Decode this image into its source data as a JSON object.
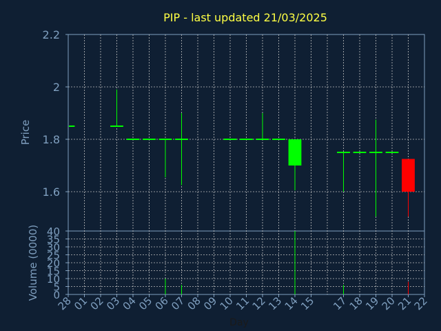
{
  "chart_data": [
    {
      "type": "candlestick",
      "title": "PIP - last updated 21/03/2025",
      "ylabel": "Price",
      "ylim": [
        1.45,
        2.2
      ],
      "yticks": [
        "1.6",
        "1.8",
        "2",
        "2.2"
      ],
      "grid": true,
      "up_color": "#00ff00",
      "down_color": "#ff0000",
      "flat_color": "#00ff00",
      "candles": [
        {
          "day": "28",
          "open": 1.85,
          "high": 1.85,
          "low": 1.85,
          "close": 1.85
        },
        {
          "day": "03",
          "open": 1.85,
          "high": 1.99,
          "low": 1.85,
          "close": 1.85
        },
        {
          "day": "04",
          "open": 1.8,
          "high": 1.8,
          "low": 1.8,
          "close": 1.8
        },
        {
          "day": "05",
          "open": 1.8,
          "high": 1.8,
          "low": 1.8,
          "close": 1.8
        },
        {
          "day": "06",
          "open": 1.8,
          "high": 1.8,
          "low": 1.655,
          "close": 1.8
        },
        {
          "day": "07",
          "open": 1.8,
          "high": 1.9,
          "low": 1.625,
          "close": 1.8
        },
        {
          "day": "10",
          "open": 1.8,
          "high": 1.8,
          "low": 1.8,
          "close": 1.8
        },
        {
          "day": "11",
          "open": 1.8,
          "high": 1.8,
          "low": 1.8,
          "close": 1.8
        },
        {
          "day": "12",
          "open": 1.8,
          "high": 1.9,
          "low": 1.8,
          "close": 1.8
        },
        {
          "day": "13",
          "open": 1.8,
          "high": 1.8,
          "low": 1.8,
          "close": 1.8
        },
        {
          "day": "14",
          "open": 1.7,
          "high": 1.8,
          "low": 1.605,
          "close": 1.8
        },
        {
          "day": "17",
          "open": 1.75,
          "high": 1.75,
          "low": 1.6,
          "close": 1.75
        },
        {
          "day": "18",
          "open": 1.75,
          "high": 1.75,
          "low": 1.75,
          "close": 1.75
        },
        {
          "day": "19",
          "open": 1.75,
          "high": 1.875,
          "low": 1.505,
          "close": 1.75
        },
        {
          "day": "20",
          "open": 1.75,
          "high": 1.75,
          "low": 1.75,
          "close": 1.75
        },
        {
          "day": "21",
          "open": 1.725,
          "high": 1.725,
          "low": 1.505,
          "close": 1.6
        }
      ]
    },
    {
      "type": "bar",
      "xlabel": "Day",
      "ylabel": "Volume (0000)",
      "ylim": [
        0,
        40
      ],
      "yticks": [
        "0",
        "5",
        "10",
        "15",
        "20",
        "25",
        "30",
        "35",
        "40"
      ],
      "grid": true,
      "categories": [
        "28",
        "01",
        "02",
        "03",
        "04",
        "05",
        "06",
        "07",
        "08",
        "09",
        "10",
        "11",
        "12",
        "13",
        "14",
        "15",
        "16",
        "17",
        "18",
        "19",
        "20",
        "21",
        "22"
      ],
      "x_tick_labels": [
        "28",
        "01",
        "02",
        "03",
        "04",
        "05",
        "06",
        "07",
        "08",
        "09",
        "10",
        "11",
        "12",
        "13",
        "14",
        "15",
        "17",
        "18",
        "19",
        "20",
        "21",
        "22"
      ],
      "volumes": [
        {
          "day": "06",
          "value": 10,
          "color": "#00ff00"
        },
        {
          "day": "07",
          "value": 6,
          "color": "#00ff00"
        },
        {
          "day": "14",
          "value": 40,
          "color": "#00ff00"
        },
        {
          "day": "17",
          "value": 6,
          "color": "#00ff00"
        },
        {
          "day": "21",
          "value": 8,
          "color": "#ff0000"
        }
      ]
    }
  ],
  "colors": {
    "background": "#0f1f33",
    "axis": "#7f9fbf",
    "grid": "#c0c0c0",
    "title": "#ffff44"
  }
}
